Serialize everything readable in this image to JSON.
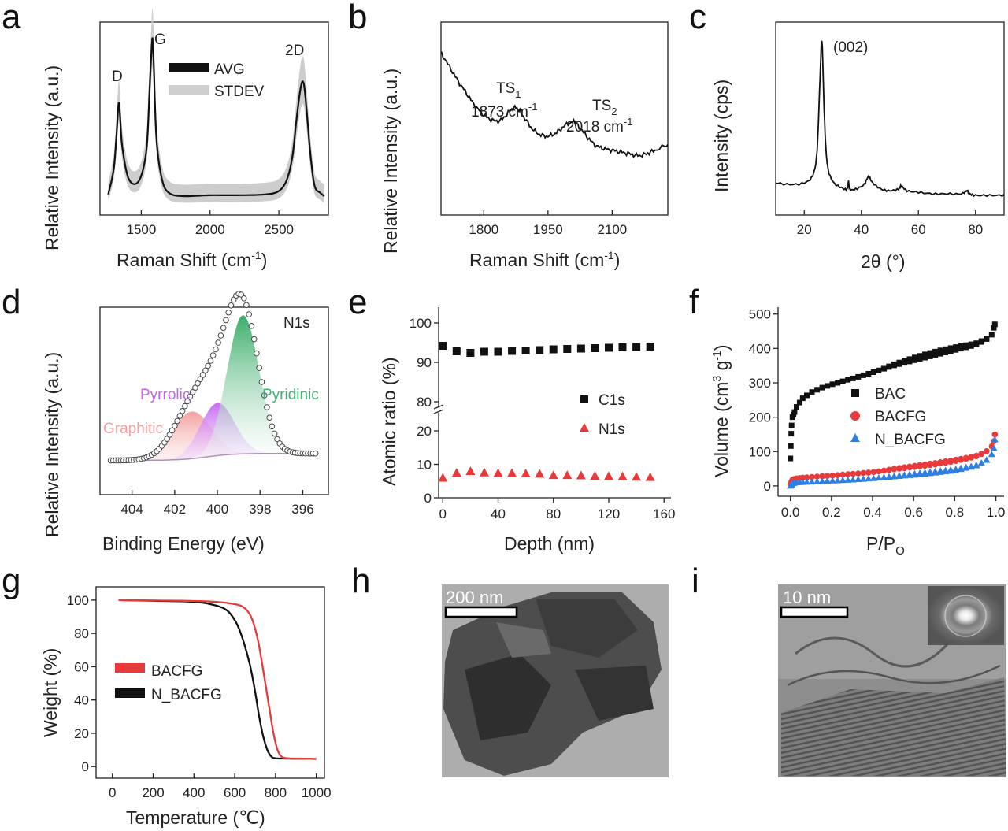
{
  "panel_labels": [
    "a",
    "b",
    "c",
    "d",
    "e",
    "f",
    "g",
    "h",
    "i"
  ],
  "chart_data": [
    {
      "id": "a",
      "type": "line",
      "xlabel": "Raman Shift (cm",
      "xlabel_sup": "-1",
      "xlabel_end": ")",
      "ylabel": "Relative Intensity (a.u.)",
      "xticks": [
        1500,
        2000,
        2500
      ],
      "xlim": [
        1200,
        2860
      ],
      "ylim": [
        0,
        1
      ],
      "series": [
        {
          "name": "AVG",
          "color": "#111111",
          "x": [
            1260,
            1300,
            1320,
            1335,
            1345,
            1360,
            1400,
            1450,
            1500,
            1540,
            1560,
            1575,
            1582,
            1590,
            1610,
            1650,
            1700,
            1800,
            2000,
            2200,
            2400,
            2500,
            2560,
            2600,
            2630,
            2660,
            2680,
            2700,
            2730,
            2760,
            2800,
            2830
          ],
          "y": [
            0.07,
            0.22,
            0.42,
            0.6,
            0.54,
            0.36,
            0.18,
            0.13,
            0.18,
            0.35,
            0.68,
            0.92,
            0.98,
            0.85,
            0.4,
            0.16,
            0.08,
            0.06,
            0.065,
            0.065,
            0.07,
            0.09,
            0.16,
            0.3,
            0.52,
            0.7,
            0.72,
            0.58,
            0.3,
            0.12,
            0.08,
            0.06
          ]
        },
        {
          "name": "STDEV",
          "color": "#c8c8c8",
          "band": 0.06
        }
      ],
      "peak_labels": [
        "D",
        "G",
        "2D"
      ],
      "peak_positions": [
        [
          1340,
          0.62
        ],
        [
          1582,
          1.0
        ],
        [
          2680,
          0.74
        ]
      ]
    },
    {
      "id": "b",
      "type": "line",
      "xlabel": "Raman Shift (cm",
      "xlabel_sup": "-1",
      "xlabel_end": ")",
      "ylabel": "Relative Intensity (a.u.)",
      "xticks": [
        1800,
        1950,
        2100
      ],
      "xlim": [
        1700,
        2230
      ],
      "ylim": [
        0,
        1
      ],
      "series": [
        {
          "name": "",
          "color": "#111111",
          "x": [
            1700,
            1720,
            1740,
            1760,
            1780,
            1800,
            1820,
            1840,
            1860,
            1875,
            1890,
            1910,
            1930,
            1950,
            1970,
            1990,
            2010,
            2020,
            2040,
            2060,
            2080,
            2100,
            2120,
            2140,
            2160,
            2180,
            2200,
            2230
          ],
          "y": [
            0.88,
            0.8,
            0.72,
            0.65,
            0.58,
            0.53,
            0.5,
            0.5,
            0.55,
            0.57,
            0.53,
            0.46,
            0.42,
            0.41,
            0.43,
            0.47,
            0.49,
            0.47,
            0.41,
            0.36,
            0.34,
            0.33,
            0.32,
            0.31,
            0.3,
            0.31,
            0.33,
            0.36
          ]
        }
      ],
      "annotations": [
        {
          "label": "TS",
          "sub": "1",
          "value": "1873 cm",
          "sup": "-1"
        },
        {
          "label": "TS",
          "sub": "2",
          "value": "2018 cm",
          "sup": "-1"
        }
      ]
    },
    {
      "id": "c",
      "type": "line",
      "xlabel": "2θ (°)",
      "ylabel": "Intensity (cps)",
      "xticks": [
        20,
        40,
        60,
        80
      ],
      "xlim": [
        10,
        90
      ],
      "ylim": [
        0,
        1
      ],
      "series": [
        {
          "name": "",
          "color": "#111111",
          "x": [
            10,
            15,
            20,
            23,
            24.5,
            25.5,
            26.2,
            27,
            28,
            30,
            33,
            35,
            35.5,
            36,
            38,
            41,
            42.5,
            44,
            47,
            50,
            53,
            54,
            56,
            60,
            65,
            70,
            75,
            77,
            78,
            80,
            85,
            90
          ],
          "y": [
            0.09,
            0.08,
            0.09,
            0.14,
            0.3,
            0.75,
            1.0,
            0.55,
            0.22,
            0.1,
            0.06,
            0.05,
            0.1,
            0.05,
            0.05,
            0.08,
            0.13,
            0.09,
            0.05,
            0.04,
            0.05,
            0.07,
            0.04,
            0.03,
            0.02,
            0.02,
            0.02,
            0.04,
            0.02,
            0.01,
            0.01,
            0.01
          ]
        }
      ],
      "annotations": [
        "(002)"
      ]
    },
    {
      "id": "d",
      "type": "area",
      "xlabel": "Binding Energy (eV)",
      "ylabel": "Relative Intensity (a.u.)",
      "xticks": [
        404,
        402,
        400,
        398,
        396
      ],
      "xlim": [
        405.5,
        394.8
      ],
      "ylim": [
        0,
        1
      ],
      "title": "N1s",
      "components": [
        {
          "name": "Graphitic",
          "color": "#f3a3a3",
          "center": 401.2,
          "height": 0.34,
          "width": 0.9
        },
        {
          "name": "Pyrrolic",
          "color": "#c566f0",
          "center": 400.0,
          "height": 0.38,
          "width": 0.8
        },
        {
          "name": "Pyridinic",
          "color": "#2fa860",
          "center": 398.8,
          "height": 1.0,
          "width": 0.75
        }
      ],
      "background_color": "#b090b8"
    },
    {
      "id": "e",
      "type": "scatter",
      "xlabel": "Depth (nm)",
      "ylabel": "Atomic ratio (%)",
      "xticks": [
        0,
        40,
        80,
        120,
        160
      ],
      "xlim": [
        -3,
        165
      ],
      "yticks_top": [
        80,
        90,
        100
      ],
      "yticks_bottom": [
        0,
        10,
        20
      ],
      "series": [
        {
          "name": "C1s",
          "color": "#111111",
          "marker": "square",
          "x": [
            0,
            10,
            20,
            30,
            40,
            50,
            60,
            70,
            80,
            90,
            100,
            110,
            120,
            130,
            140,
            150
          ],
          "y": [
            94.2,
            92.8,
            92.4,
            92.7,
            92.7,
            92.9,
            93.0,
            93.1,
            93.3,
            93.4,
            93.5,
            93.6,
            93.7,
            93.8,
            93.9,
            94.0
          ]
        },
        {
          "name": "N1s",
          "color": "#e83a3a",
          "marker": "triangle",
          "x": [
            0,
            10,
            20,
            30,
            40,
            50,
            60,
            70,
            80,
            90,
            100,
            110,
            120,
            130,
            140,
            150
          ],
          "y": [
            6.0,
            7.5,
            8.0,
            7.6,
            7.4,
            7.4,
            7.3,
            7.2,
            6.8,
            6.8,
            6.7,
            6.6,
            6.5,
            6.4,
            6.3,
            6.2
          ]
        }
      ]
    },
    {
      "id": "f",
      "type": "scatter",
      "xlabel": "P/P",
      "xlabel_sub": "O",
      "ylabel": "Volume (cm",
      "ylabel_sup": "3",
      "ylabel_mid": " g",
      "ylabel_sup2": "-1",
      "ylabel_end": ")",
      "xticks": [
        0.0,
        0.2,
        0.4,
        0.6,
        0.8,
        1.0
      ],
      "xlim": [
        -0.06,
        1.04
      ],
      "yticks": [
        0,
        100,
        200,
        300,
        400,
        500
      ],
      "ylim": [
        -30,
        520
      ],
      "series": [
        {
          "name": "BAC",
          "color": "#111111",
          "marker": "square"
        },
        {
          "name": "BACFG",
          "color": "#e83a3a",
          "marker": "circle"
        },
        {
          "name": "N_BACFG",
          "color": "#2f7fe0",
          "marker": "triangle"
        }
      ],
      "curves": {
        "BAC": {
          "x": [
            0.0,
            0.005,
            0.01,
            0.03,
            0.06,
            0.1,
            0.15,
            0.2,
            0.3,
            0.4,
            0.5,
            0.6,
            0.7,
            0.8,
            0.9,
            0.95,
            0.98,
            0.99,
            0.995
          ],
          "y": [
            80,
            170,
            200,
            230,
            255,
            272,
            285,
            295,
            312,
            330,
            350,
            365,
            380,
            395,
            410,
            425,
            440,
            460,
            470
          ]
        },
        "BACFG": {
          "x": [
            0.0,
            0.01,
            0.03,
            0.06,
            0.1,
            0.2,
            0.3,
            0.4,
            0.5,
            0.6,
            0.7,
            0.8,
            0.9,
            0.95,
            0.98,
            0.99,
            0.995
          ],
          "y": [
            5,
            18,
            22,
            24,
            26,
            30,
            35,
            40,
            48,
            55,
            62,
            72,
            85,
            98,
            115,
            130,
            150
          ]
        },
        "N_BACFG": {
          "x": [
            0.0,
            0.01,
            0.03,
            0.06,
            0.1,
            0.2,
            0.3,
            0.4,
            0.5,
            0.6,
            0.7,
            0.8,
            0.9,
            0.95,
            0.98,
            0.99,
            0.995
          ],
          "y": [
            0,
            8,
            10,
            11,
            12,
            15,
            18,
            22,
            27,
            32,
            38,
            45,
            58,
            72,
            92,
            110,
            135
          ]
        }
      }
    },
    {
      "id": "g",
      "type": "line",
      "xlabel": "Temperature (℃)",
      "ylabel": "Weight (%)",
      "xticks": [
        0,
        200,
        400,
        600,
        800,
        1000
      ],
      "xlim": [
        -80,
        1040
      ],
      "yticks": [
        0,
        20,
        40,
        60,
        80,
        100
      ],
      "ylim": [
        -7,
        108
      ],
      "series": [
        {
          "name": "BACFG",
          "color": "#e83a3a",
          "x": [
            30,
            200,
            400,
            500,
            580,
            640,
            680,
            710,
            730,
            750,
            770,
            790,
            810,
            830,
            860,
            900,
            1000
          ],
          "y": [
            100,
            99.8,
            99.5,
            99,
            98,
            96,
            90,
            78,
            65,
            50,
            35,
            20,
            10,
            6,
            5,
            4.8,
            4.6
          ]
        },
        {
          "name": "N_BACFG",
          "color": "#111111",
          "x": [
            30,
            200,
            400,
            500,
            560,
            600,
            630,
            660,
            680,
            700,
            720,
            740,
            760,
            780,
            800,
            850,
            1000
          ],
          "y": [
            100,
            99.6,
            99,
            97,
            94,
            88,
            80,
            68,
            58,
            45,
            30,
            18,
            10,
            6,
            5,
            4.8,
            4.6
          ]
        }
      ]
    }
  ],
  "images": [
    {
      "id": "h",
      "scale_bar": "200 nm"
    },
    {
      "id": "i",
      "scale_bar": "10 nm"
    }
  ]
}
